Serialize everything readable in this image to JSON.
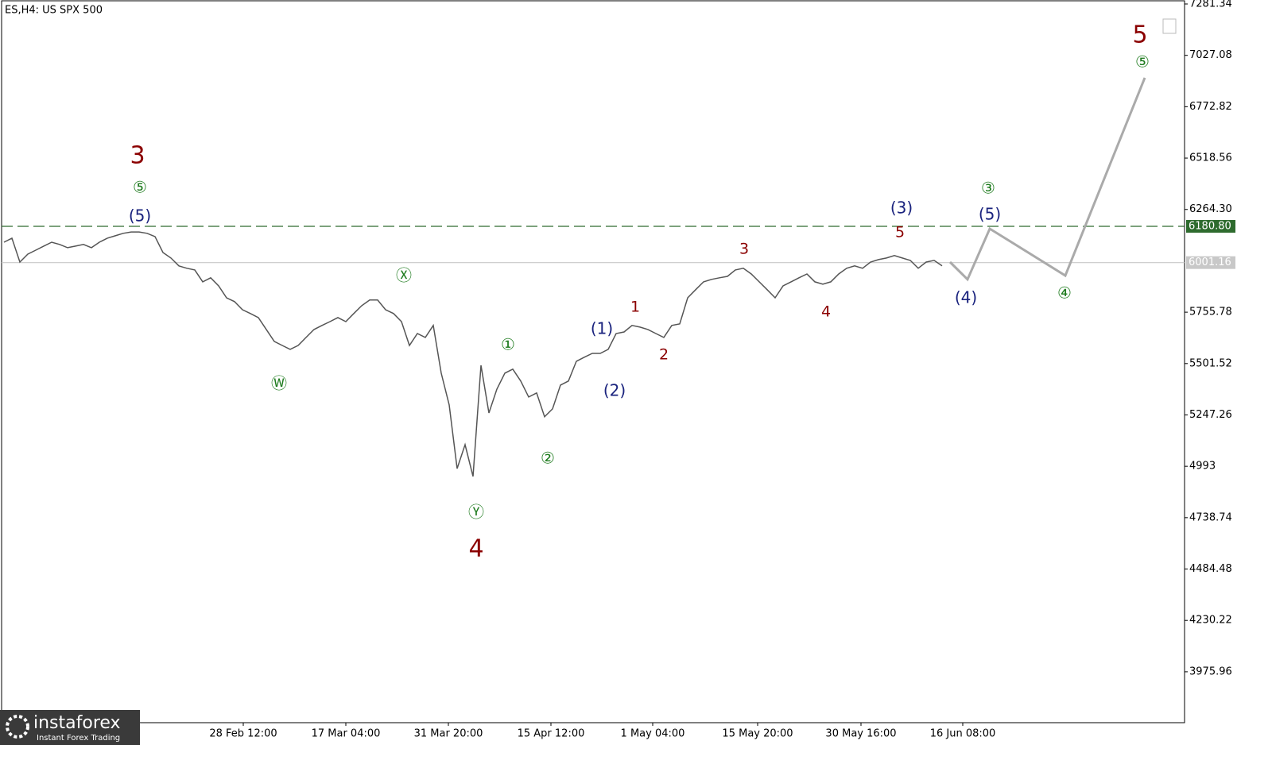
{
  "header": {
    "title": "ES,H4:  US SPX 500"
  },
  "logo": {
    "name": "instaforex",
    "tagline": "Instant Forex Trading"
  },
  "chart_data": {
    "type": "line",
    "ylim": [
      3724,
      7301
    ],
    "xlim": [
      -0.3,
      148.5
    ],
    "yticks": [
      {
        "value": 7281.34,
        "label": "7281.34"
      },
      {
        "value": 7027.08,
        "label": "7027.08"
      },
      {
        "value": 6772.82,
        "label": "6772.82"
      },
      {
        "value": 6518.56,
        "label": "6518.56"
      },
      {
        "value": 6264.3,
        "label": "6264.30"
      },
      {
        "value": 5755.78,
        "label": "5755.78"
      },
      {
        "value": 5501.52,
        "label": "5501.52"
      },
      {
        "value": 5247.26,
        "label": "5247.26"
      },
      4993,
      {
        "value": 4738.74,
        "label": "4738.74"
      },
      {
        "value": 4484.48,
        "label": "4484.48"
      },
      {
        "value": 4230.22,
        "label": "4230.22"
      },
      {
        "value": 3975.96,
        "label": "3975.96"
      }
    ],
    "xticks": [
      {
        "value": 30.1,
        "label": "28 Feb 12:00"
      },
      {
        "value": 43,
        "label": "17 Mar 04:00"
      },
      {
        "value": 55.9,
        "label": "31 Mar 20:00"
      },
      {
        "value": 68.8,
        "label": "15 Apr 12:00"
      },
      {
        "value": 81.6,
        "label": "1 May 04:00"
      },
      {
        "value": 94.8,
        "label": "15 May 20:00"
      },
      {
        "value": 107.8,
        "label": "30 May 16:00"
      },
      {
        "value": 120.6,
        "label": "16 Jun 08:00"
      }
    ],
    "series": [
      {
        "name": "ES",
        "color": "#555555",
        "values": [
          6102,
          6122,
          6004,
          6043,
          6063,
          6083,
          6102,
          6091,
          6075,
          6083,
          6091,
          6075,
          6102,
          6122,
          6134,
          6146,
          6153,
          6153,
          6146,
          6130,
          6051,
          6024,
          5985,
          5973,
          5965,
          5906,
          5926,
          5886,
          5827,
          5808,
          5768,
          5749,
          5729,
          5670,
          5611,
          5591,
          5572,
          5591,
          5631,
          5670,
          5690,
          5709,
          5729,
          5709,
          5749,
          5788,
          5816,
          5816,
          5768,
          5749,
          5709,
          5591,
          5650,
          5631,
          5690,
          5454,
          5297,
          4982,
          5100,
          4943,
          5493,
          5257,
          5375,
          5454,
          5474,
          5415,
          5336,
          5356,
          5238,
          5277,
          5395,
          5415,
          5513,
          5533,
          5552,
          5552,
          5572,
          5650,
          5658,
          5690,
          5682,
          5670,
          5650,
          5631,
          5690,
          5698,
          5827,
          5867,
          5906,
          5918,
          5926,
          5933,
          5965,
          5973,
          5945,
          5906,
          5867,
          5827,
          5886,
          5906,
          5926,
          5945,
          5906,
          5894,
          5906,
          5945,
          5973,
          5985,
          5973,
          6004,
          6016,
          6024,
          6036,
          6024,
          6012,
          5973,
          6004,
          6012,
          5985
        ]
      },
      {
        "name": "Forecast",
        "color": "#aaaaaa",
        "x": [
          119,
          121.2,
          124,
          133.5,
          143.5
        ],
        "values": [
          6004,
          5918,
          6169,
          5937,
          6916
        ]
      }
    ],
    "levels": [
      {
        "value": 6180.8,
        "label": "6180.80",
        "color": "#2e6b2e",
        "style": "dashed"
      },
      {
        "value": 6001.16,
        "label": "6001.16",
        "color": "#c8c8c8",
        "style": "solid"
      }
    ],
    "annotations": [
      {
        "text": "3",
        "x": 16.8,
        "y": 6527,
        "color": "#8b0000",
        "size": "big"
      },
      {
        "text": "⑤",
        "x": 17.1,
        "y": 6370,
        "color": "#1e7b1e"
      },
      {
        "text": "(5)",
        "x": 17.1,
        "y": 6228,
        "color": "#1a237e"
      },
      {
        "text": "Ⓦ",
        "x": 34.6,
        "y": 5399,
        "color": "#1e7b1e"
      },
      {
        "text": "Ⓧ",
        "x": 50.3,
        "y": 5933,
        "color": "#1e7b1e"
      },
      {
        "text": "Ⓨ",
        "x": 59.4,
        "y": 4762,
        "color": "#1e7b1e"
      },
      {
        "text": "4",
        "x": 59.4,
        "y": 4581,
        "color": "#8b0000",
        "size": "big"
      },
      {
        "text": "①",
        "x": 63.4,
        "y": 5591,
        "color": "#1e7b1e"
      },
      {
        "text": "②",
        "x": 68.4,
        "y": 5029,
        "color": "#1e7b1e"
      },
      {
        "text": "(1)",
        "x": 75.2,
        "y": 5670,
        "color": "#1a237e"
      },
      {
        "text": "(2)",
        "x": 76.8,
        "y": 5364,
        "color": "#1a237e"
      },
      {
        "text": "1",
        "x": 79.4,
        "y": 5780,
        "color": "#8b0000",
        "size": "small"
      },
      {
        "text": "2",
        "x": 83,
        "y": 5544,
        "color": "#8b0000",
        "size": "small"
      },
      {
        "text": "3",
        "x": 93.1,
        "y": 6067,
        "color": "#8b0000",
        "size": "small"
      },
      {
        "text": "4",
        "x": 103.4,
        "y": 5757,
        "color": "#8b0000",
        "size": "small"
      },
      {
        "text": "(3)",
        "x": 112.9,
        "y": 6267,
        "color": "#1a237e"
      },
      {
        "text": "5",
        "x": 112.7,
        "y": 6150,
        "color": "#8b0000",
        "size": "small"
      },
      {
        "text": "(4)",
        "x": 121,
        "y": 5823,
        "color": "#1a237e"
      },
      {
        "text": "③",
        "x": 123.8,
        "y": 6366,
        "color": "#1e7b1e"
      },
      {
        "text": "(5)",
        "x": 124,
        "y": 6236,
        "color": "#1a237e"
      },
      {
        "text": "④",
        "x": 133.4,
        "y": 5847,
        "color": "#1e7b1e"
      },
      {
        "text": "5",
        "x": 142.9,
        "y": 7124,
        "color": "#8b0000",
        "size": "big"
      },
      {
        "text": "⑤",
        "x": 143.2,
        "y": 6991,
        "color": "#1e7b1e"
      }
    ]
  }
}
